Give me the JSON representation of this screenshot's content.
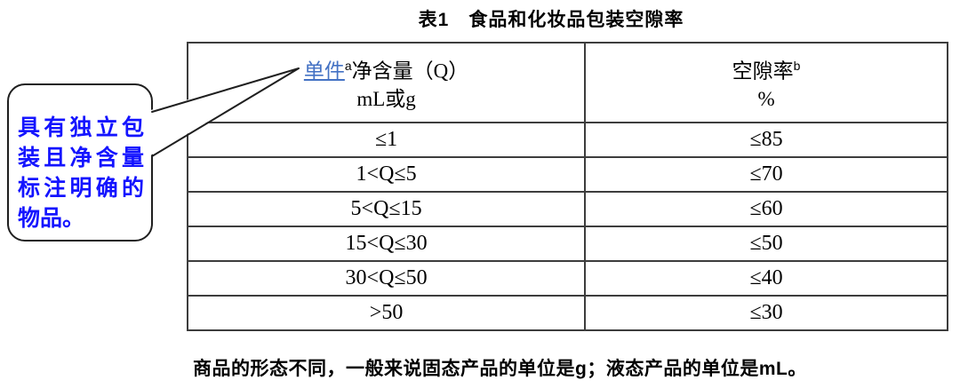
{
  "page": {
    "title": "表1　食品和化妆品包装空隙率"
  },
  "callout": {
    "text": "具有独立包装且净含量标注明确的物品。"
  },
  "table": {
    "header": {
      "col1": {
        "link": "单件",
        "sup": "a",
        "rest": "净含量（Q）",
        "line2": "mL或g"
      },
      "col2": {
        "label": "空隙率",
        "sup": "b",
        "line2": "%"
      }
    },
    "rows": [
      [
        "≤1",
        "≤85"
      ],
      [
        "1<Q≤5",
        "≤70"
      ],
      [
        "5<Q≤15",
        "≤60"
      ],
      [
        "15<Q≤30",
        "≤50"
      ],
      [
        "30<Q≤50",
        "≤40"
      ],
      [
        ">50",
        "≤30"
      ]
    ]
  },
  "footer": {
    "part1": "商品的形态不同，一般来说固态产品的单位是",
    "unit1": "g",
    "part2": "；液态产品的单位是",
    "unit2": "mL",
    "end": "。"
  },
  "colors": {
    "link_blue": "#4472C4",
    "callout_text_blue": "#1414FF",
    "border_gray": "#3d3d3d"
  }
}
